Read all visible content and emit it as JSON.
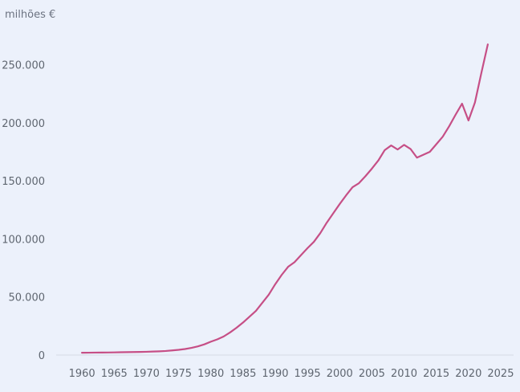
{
  "chart_data": {
    "type": "line",
    "unit_label": "milhões €",
    "x_ticks": [
      "1960",
      "1965",
      "1970",
      "1975",
      "1980",
      "1985",
      "1990",
      "1995",
      "2000",
      "2005",
      "2010",
      "2015",
      "2020",
      "2025"
    ],
    "y_ticks": [
      "0",
      "50.000",
      "100.000",
      "150.000",
      "200.000",
      "250.000"
    ],
    "xlim": [
      1956,
      2027
    ],
    "ylim": [
      0,
      285000
    ],
    "grid": false,
    "series": [
      {
        "color": "#c64f86",
        "points": [
          [
            1960,
            2000
          ],
          [
            1961,
            2050
          ],
          [
            1962,
            2100
          ],
          [
            1963,
            2150
          ],
          [
            1964,
            2200
          ],
          [
            1965,
            2300
          ],
          [
            1966,
            2400
          ],
          [
            1967,
            2500
          ],
          [
            1968,
            2600
          ],
          [
            1969,
            2700
          ],
          [
            1970,
            2800
          ],
          [
            1971,
            3000
          ],
          [
            1972,
            3200
          ],
          [
            1973,
            3500
          ],
          [
            1974,
            4000
          ],
          [
            1975,
            4500
          ],
          [
            1976,
            5200
          ],
          [
            1977,
            6200
          ],
          [
            1978,
            7500
          ],
          [
            1979,
            9200
          ],
          [
            1980,
            11500
          ],
          [
            1981,
            13500
          ],
          [
            1982,
            16000
          ],
          [
            1983,
            19500
          ],
          [
            1984,
            23500
          ],
          [
            1985,
            28000
          ],
          [
            1986,
            33000
          ],
          [
            1987,
            38000
          ],
          [
            1988,
            45000
          ],
          [
            1989,
            52000
          ],
          [
            1990,
            61000
          ],
          [
            1991,
            69000
          ],
          [
            1992,
            76000
          ],
          [
            1993,
            80000
          ],
          [
            1994,
            86000
          ],
          [
            1995,
            92000
          ],
          [
            1996,
            97500
          ],
          [
            1997,
            105000
          ],
          [
            1998,
            114000
          ],
          [
            1999,
            122000
          ],
          [
            2000,
            130000
          ],
          [
            2001,
            137500
          ],
          [
            2002,
            144500
          ],
          [
            2003,
            148000
          ],
          [
            2004,
            154000
          ],
          [
            2005,
            160500
          ],
          [
            2006,
            167500
          ],
          [
            2007,
            176500
          ],
          [
            2008,
            180500
          ],
          [
            2009,
            177000
          ],
          [
            2010,
            181000
          ],
          [
            2011,
            177500
          ],
          [
            2012,
            170000
          ],
          [
            2013,
            172500
          ],
          [
            2014,
            175000
          ],
          [
            2015,
            181500
          ],
          [
            2016,
            188000
          ],
          [
            2017,
            197000
          ],
          [
            2018,
            207000
          ],
          [
            2019,
            216500
          ],
          [
            2020,
            202000
          ],
          [
            2021,
            217500
          ],
          [
            2022,
            243000
          ],
          [
            2023,
            267500
          ]
        ]
      }
    ]
  }
}
